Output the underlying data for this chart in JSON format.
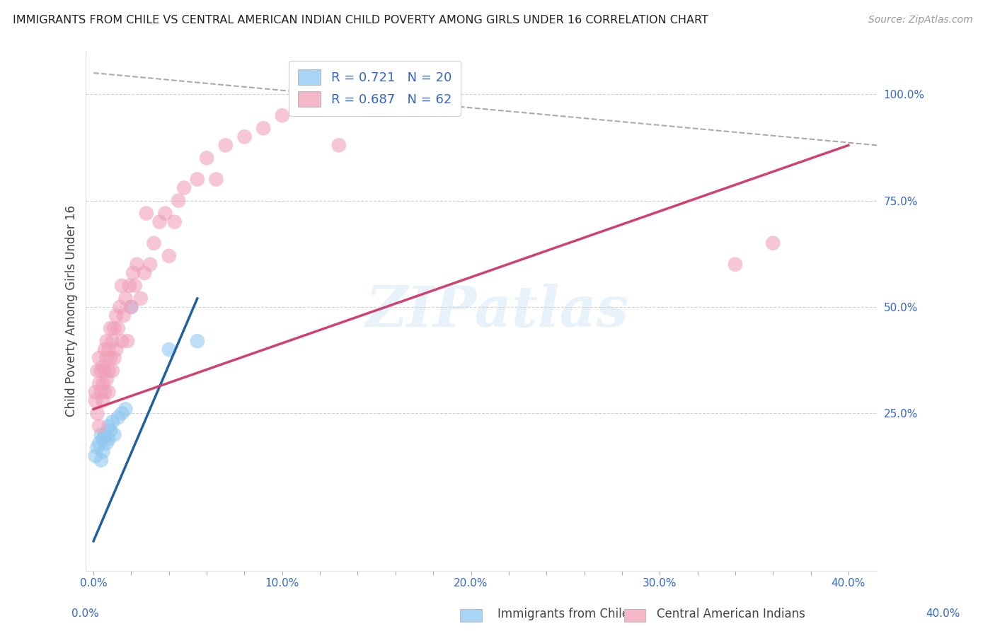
{
  "title": "IMMIGRANTS FROM CHILE VS CENTRAL AMERICAN INDIAN CHILD POVERTY AMONG GIRLS UNDER 16 CORRELATION CHART",
  "source": "Source: ZipAtlas.com",
  "ylabel": "Child Poverty Among Girls Under 16",
  "xlabel_ticks": [
    "0.0%",
    "",
    "",
    "",
    "",
    "10.0%",
    "",
    "",
    "",
    "",
    "20.0%",
    "",
    "",
    "",
    "",
    "30.0%",
    "",
    "",
    "",
    "",
    "40.0%"
  ],
  "xlabel_vals": [
    0.0,
    0.02,
    0.04,
    0.06,
    0.08,
    0.1,
    0.12,
    0.14,
    0.16,
    0.18,
    0.2,
    0.22,
    0.24,
    0.26,
    0.28,
    0.3,
    0.32,
    0.34,
    0.36,
    0.38,
    0.4
  ],
  "ylabel_ticks": [
    "100.0%",
    "75.0%",
    "50.0%",
    "25.0%"
  ],
  "ylabel_vals": [
    1.0,
    0.75,
    0.5,
    0.25
  ],
  "xlim": [
    -0.004,
    0.415
  ],
  "ylim": [
    -0.12,
    1.1
  ],
  "legend1_label": "R = 0.721   N = 20",
  "legend2_label": "R = 0.687   N = 62",
  "legend1_color": "#a8d4f5",
  "legend2_color": "#f5b8c8",
  "watermark": "ZIPatlas",
  "blue_scatter_x": [
    0.001,
    0.002,
    0.003,
    0.004,
    0.004,
    0.005,
    0.005,
    0.006,
    0.007,
    0.008,
    0.008,
    0.009,
    0.01,
    0.011,
    0.013,
    0.015,
    0.017,
    0.02,
    0.04,
    0.055
  ],
  "blue_scatter_y": [
    0.15,
    0.17,
    0.18,
    0.2,
    0.14,
    0.16,
    0.19,
    0.2,
    0.18,
    0.19,
    0.22,
    0.21,
    0.23,
    0.2,
    0.24,
    0.25,
    0.26,
    0.5,
    0.4,
    0.42
  ],
  "pink_scatter_x": [
    0.001,
    0.001,
    0.002,
    0.002,
    0.003,
    0.003,
    0.003,
    0.004,
    0.004,
    0.005,
    0.005,
    0.005,
    0.006,
    0.006,
    0.006,
    0.007,
    0.007,
    0.007,
    0.008,
    0.008,
    0.008,
    0.009,
    0.009,
    0.01,
    0.01,
    0.011,
    0.011,
    0.012,
    0.012,
    0.013,
    0.014,
    0.015,
    0.015,
    0.016,
    0.017,
    0.018,
    0.019,
    0.02,
    0.021,
    0.022,
    0.023,
    0.025,
    0.027,
    0.028,
    0.03,
    0.032,
    0.035,
    0.038,
    0.04,
    0.043,
    0.045,
    0.048,
    0.055,
    0.06,
    0.065,
    0.07,
    0.08,
    0.09,
    0.1,
    0.13,
    0.34,
    0.36
  ],
  "pink_scatter_y": [
    0.3,
    0.28,
    0.25,
    0.35,
    0.32,
    0.22,
    0.38,
    0.3,
    0.35,
    0.28,
    0.32,
    0.36,
    0.3,
    0.35,
    0.4,
    0.33,
    0.38,
    0.42,
    0.35,
    0.3,
    0.4,
    0.38,
    0.45,
    0.35,
    0.42,
    0.38,
    0.45,
    0.4,
    0.48,
    0.45,
    0.5,
    0.42,
    0.55,
    0.48,
    0.52,
    0.42,
    0.55,
    0.5,
    0.58,
    0.55,
    0.6,
    0.52,
    0.58,
    0.72,
    0.6,
    0.65,
    0.7,
    0.72,
    0.62,
    0.7,
    0.75,
    0.78,
    0.8,
    0.85,
    0.8,
    0.88,
    0.9,
    0.92,
    0.95,
    0.88,
    0.6,
    0.65
  ],
  "blue_line_x": [
    0.0,
    0.055
  ],
  "blue_line_y": [
    -0.05,
    0.52
  ],
  "pink_line_x": [
    0.0,
    0.4
  ],
  "pink_line_y": [
    0.26,
    0.88
  ],
  "dashed_line_x": [
    0.0,
    0.415
  ],
  "dashed_line_y": [
    1.05,
    0.88
  ],
  "title_color": "#222222",
  "scatter_blue_color": "#90c8f0",
  "scatter_pink_color": "#f0a0b8",
  "line_blue_color": "#2060a0",
  "line_pink_color": "#d04070",
  "dashed_line_color": "#aaaaaa",
  "grid_color": "#cccccc",
  "axis_label_color": "#444444",
  "tick_color": "#3366cc",
  "background_color": "#ffffff"
}
